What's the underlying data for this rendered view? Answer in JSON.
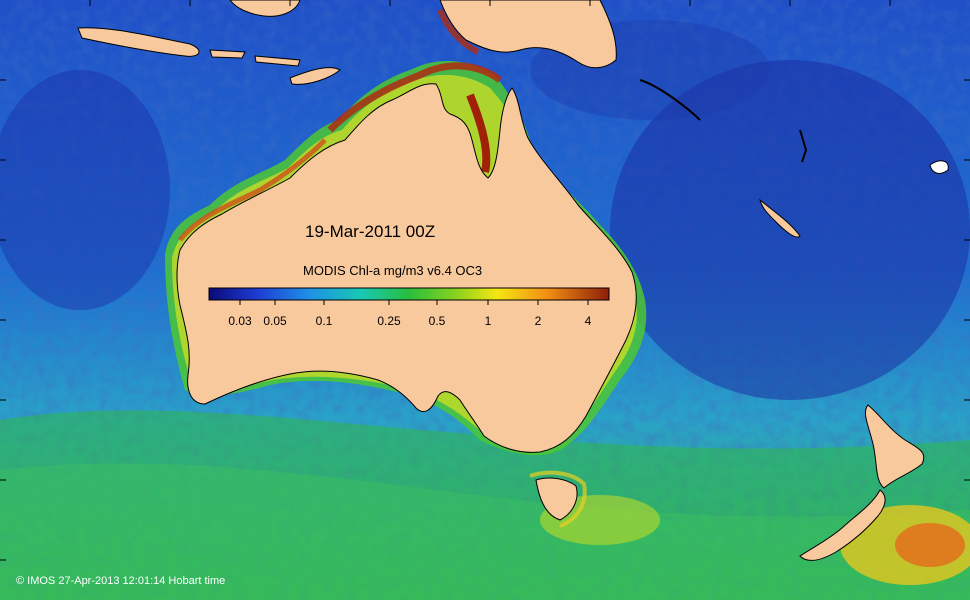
{
  "map": {
    "date_label": "19-Mar-2011 00Z",
    "colorbar": {
      "title": "MODIS Chl-a mg/m3 v6.4 OC3",
      "ticks": [
        "0.03",
        "0.05",
        "0.1",
        "0.25",
        "0.5",
        "1",
        "2",
        "4"
      ],
      "min_value": 0.02,
      "max_value": 5,
      "scale": "log"
    },
    "credit": "© IMOS 27-Apr-2013 12:01:14 Hobart time",
    "colors": {
      "land": "#f9c99e",
      "ocean_low": "#1a2ea8",
      "ocean_mid": "#1e8fd8",
      "ocean_high": "#2fb84a",
      "bloom": "#f2e21a",
      "very_high": "#b02a10",
      "coastline": "#000000"
    }
  }
}
